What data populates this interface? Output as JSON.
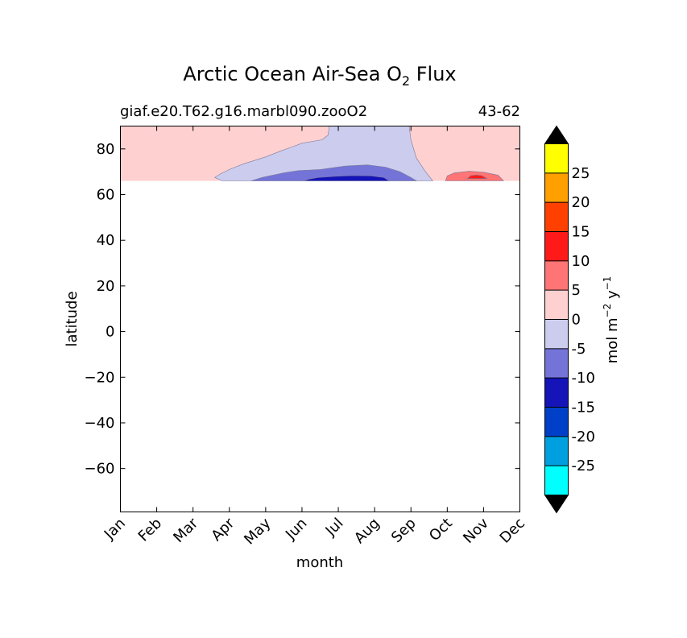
{
  "chart_data": {
    "type": "contour",
    "title": "Arctic Ocean Air-Sea O",
    "title_subscript": "2",
    "title_suffix": " Flux",
    "subtitle_left": "giaf.e20.T62.g16.marbl090.zooO2",
    "subtitle_right": "43-62",
    "xlabel": "month",
    "ylabel": "latitude",
    "x_ticks": [
      "Jan",
      "Feb",
      "Mar",
      "Apr",
      "May",
      "Jun",
      "Jul",
      "Aug",
      "Sep",
      "Oct",
      "Nov",
      "Dec"
    ],
    "x_range": [
      0,
      11
    ],
    "y_ticks": [
      "80",
      "60",
      "40",
      "20",
      "0",
      "−20",
      "−40",
      "−60"
    ],
    "y_range": [
      -79,
      90
    ],
    "data_lat_range": [
      66,
      90
    ],
    "colorbar": {
      "label_main": "mol m",
      "label_exp1": "−2",
      "label_mid": " y",
      "label_exp2": "−1",
      "extend": "both",
      "under_color": "#000000",
      "over_color": "#000000",
      "ticks": [
        "-25",
        "-20",
        "-15",
        "-10",
        "-5",
        "0",
        "5",
        "10",
        "15",
        "20",
        "25"
      ],
      "levels": [
        {
          "min": -30,
          "max": -25,
          "color": "#00ffff"
        },
        {
          "min": -25,
          "max": -20,
          "color": "#00a0e0"
        },
        {
          "min": -20,
          "max": -15,
          "color": "#0040c8"
        },
        {
          "min": -15,
          "max": -10,
          "color": "#1414b8"
        },
        {
          "min": -10,
          "max": -5,
          "color": "#7474d8"
        },
        {
          "min": -5,
          "max": 0,
          "color": "#cccdee"
        },
        {
          "min": 0,
          "max": 5,
          "color": "#ffd0d0"
        },
        {
          "min": 5,
          "max": 10,
          "color": "#ff7474"
        },
        {
          "min": 10,
          "max": 15,
          "color": "#ff1a1a"
        },
        {
          "min": 15,
          "max": 20,
          "color": "#ff4000"
        },
        {
          "min": 20,
          "max": 25,
          "color": "#ff9f00"
        },
        {
          "min": 25,
          "max": 30,
          "color": "#ffff00"
        }
      ]
    },
    "regions": [
      {
        "level": "0 to 5",
        "color": "#ffd0d0",
        "points": [
          [
            0,
            66
          ],
          [
            11,
            66
          ],
          [
            11,
            90
          ],
          [
            0,
            90
          ]
        ]
      },
      {
        "level": "-5 to 0",
        "color": "#cccdee",
        "points": [
          [
            2.8,
            66
          ],
          [
            8.6,
            66
          ],
          [
            8.4,
            70
          ],
          [
            8.15,
            76
          ],
          [
            8.0,
            84
          ],
          [
            7.95,
            90
          ],
          [
            5.75,
            90
          ],
          [
            5.72,
            86
          ],
          [
            5.55,
            84
          ],
          [
            5.0,
            82.5
          ],
          [
            4.75,
            81
          ],
          [
            4.4,
            79
          ],
          [
            4.0,
            76.5
          ],
          [
            3.4,
            73.5
          ],
          [
            3.0,
            71
          ],
          [
            2.75,
            69
          ],
          [
            2.6,
            67.5
          ]
        ]
      },
      {
        "level": "-10 to -5",
        "color": "#7474d8",
        "points": [
          [
            3.6,
            66
          ],
          [
            8.15,
            66
          ],
          [
            8.0,
            67.5
          ],
          [
            7.7,
            70
          ],
          [
            7.3,
            72
          ],
          [
            6.8,
            73
          ],
          [
            6.2,
            72.5
          ],
          [
            5.5,
            71
          ],
          [
            4.9,
            70.5
          ],
          [
            4.5,
            69.5
          ],
          [
            4.2,
            68.5
          ],
          [
            3.9,
            67.5
          ]
        ]
      },
      {
        "level": "-15 to -10",
        "color": "#1414b8",
        "points": [
          [
            5.05,
            66
          ],
          [
            7.4,
            66
          ],
          [
            7.25,
            67.5
          ],
          [
            6.9,
            68.2
          ],
          [
            6.4,
            68.3
          ],
          [
            5.9,
            68.0
          ],
          [
            5.45,
            67.5
          ],
          [
            5.2,
            66.8
          ]
        ]
      },
      {
        "level": "5 to 10",
        "color": "#ff7474",
        "points": [
          [
            8.95,
            66
          ],
          [
            10.55,
            66
          ],
          [
            10.4,
            68.5
          ],
          [
            10.0,
            69.8
          ],
          [
            9.6,
            70.2
          ],
          [
            9.2,
            69.5
          ],
          [
            9.0,
            68.2
          ]
        ]
      },
      {
        "level": "10 to 15",
        "color": "#ff1a1a",
        "points": [
          [
            9.55,
            67.0
          ],
          [
            10.1,
            67.0
          ],
          [
            9.95,
            68.3
          ],
          [
            9.8,
            68.6
          ],
          [
            9.65,
            68.3
          ]
        ]
      }
    ]
  }
}
